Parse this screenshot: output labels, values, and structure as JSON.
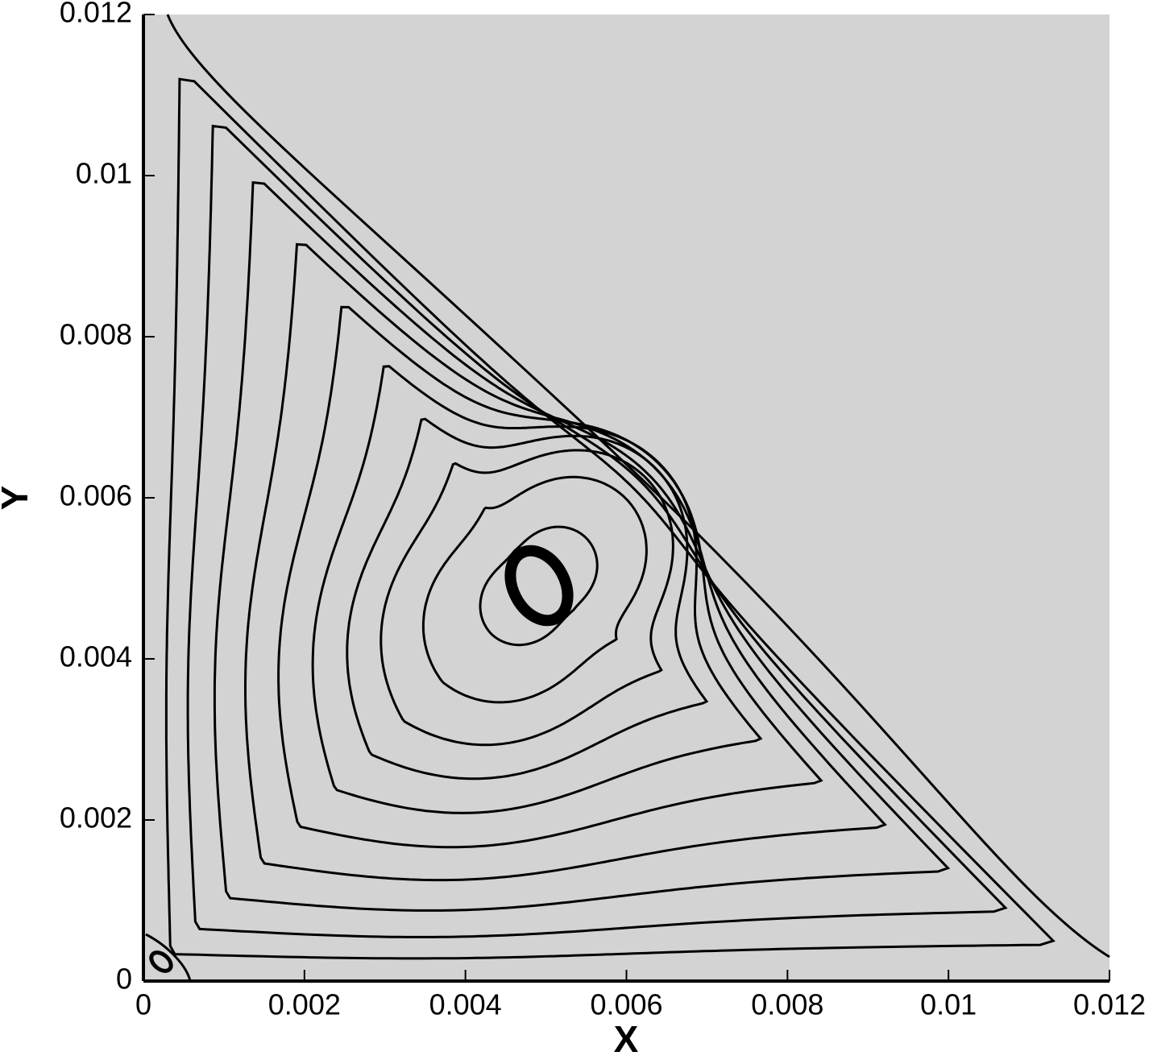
{
  "chart_data": {
    "type": "streamline",
    "x_label": "X",
    "y_label": "Y",
    "xlim": [
      0,
      0.012
    ],
    "ylim": [
      0,
      0.012
    ],
    "xticks": [
      0,
      0.002,
      0.004,
      0.006,
      0.008,
      0.01,
      0.012
    ],
    "yticks": [
      0,
      0.002,
      0.004,
      0.006,
      0.008,
      0.01,
      0.012
    ],
    "background": "#d3d3d3",
    "line_color": "#000000"
  }
}
